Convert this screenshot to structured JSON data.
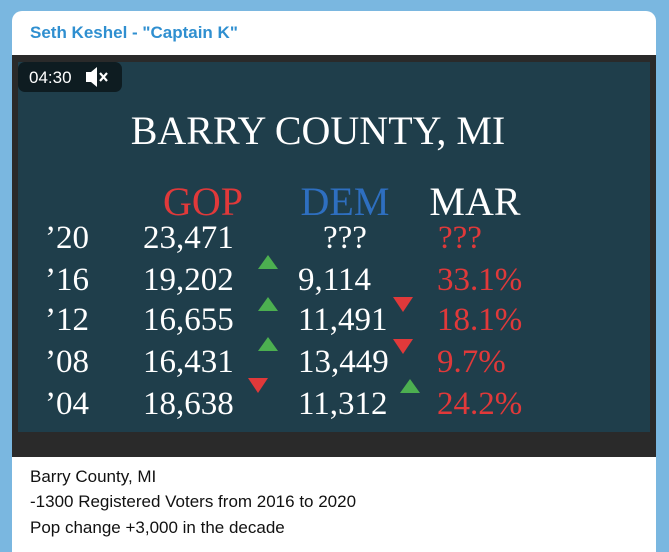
{
  "header": {
    "title": "Seth Keshel - \"Captain K\""
  },
  "video": {
    "duration": "04:30",
    "slide": {
      "title": "BARRY COUNTY, MI",
      "columns": [
        "GOP",
        "DEM",
        "MAR"
      ],
      "rows": [
        [
          "’20",
          "23,471",
          "???",
          "???"
        ],
        [
          "’16",
          "19,202",
          "9,114",
          "33.1%"
        ],
        [
          "’12",
          "16,655",
          "11,491",
          "18.1%"
        ],
        [
          "’08",
          "16,431",
          "13,449",
          "9.7%"
        ],
        [
          "’04",
          "18,638",
          "11,312",
          "24.2%"
        ]
      ]
    }
  },
  "caption": [
    "Barry County, MI",
    "-1300 Registered Voters from 2016 to 2020",
    "Pop change +3,000 in the decade"
  ]
}
